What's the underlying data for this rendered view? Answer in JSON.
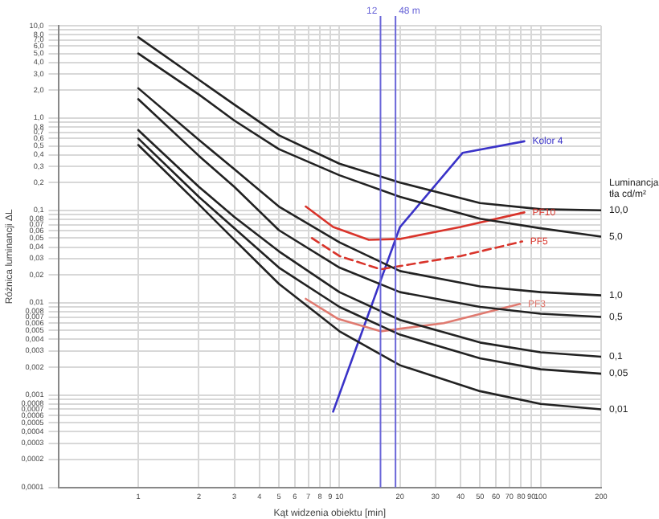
{
  "chart_data": {
    "type": "line",
    "log": "xy",
    "xlabel": "Kąt widzenia obiektu [min]",
    "ylabel": "Różnica luminancji ΔL",
    "legend_title": "Luminancja tła cd/m²",
    "xlim": [
      0.4,
      200
    ],
    "ylim": [
      0.0001,
      10
    ],
    "xticks": [
      1,
      2,
      3,
      4,
      5,
      6,
      7,
      8,
      9,
      10,
      20,
      30,
      40,
      50,
      60,
      70,
      80,
      90,
      100,
      200
    ],
    "yticks": [
      {
        "value": 0.0001,
        "label": "0,0001"
      },
      {
        "value": 0.0002,
        "label": "0,0002"
      },
      {
        "value": 0.0003,
        "label": "0,0003"
      },
      {
        "value": 0.0004,
        "label": "0,0004"
      },
      {
        "value": 0.0005,
        "label": "0,0005"
      },
      {
        "value": 0.0006,
        "label": "0,0006"
      },
      {
        "value": 0.0007,
        "label": "0,0007"
      },
      {
        "value": 0.0008,
        "label": "0,0008"
      },
      {
        "value": 0.0009,
        "label": null
      },
      {
        "value": 0.001,
        "label": "0,001"
      },
      {
        "value": 0.002,
        "label": "0,002"
      },
      {
        "value": 0.003,
        "label": "0,003"
      },
      {
        "value": 0.004,
        "label": "0,004"
      },
      {
        "value": 0.005,
        "label": "0,005"
      },
      {
        "value": 0.006,
        "label": "0,006"
      },
      {
        "value": 0.007,
        "label": "0,007"
      },
      {
        "value": 0.008,
        "label": "0,008"
      },
      {
        "value": 0.009,
        "label": null
      },
      {
        "value": 0.01,
        "label": "0,01"
      },
      {
        "value": 0.02,
        "label": "0,02"
      },
      {
        "value": 0.03,
        "label": "0,03"
      },
      {
        "value": 0.04,
        "label": "0,04"
      },
      {
        "value": 0.05,
        "label": "0,05"
      },
      {
        "value": 0.06,
        "label": "0,06"
      },
      {
        "value": 0.07,
        "label": "0,07"
      },
      {
        "value": 0.08,
        "label": "0,08"
      },
      {
        "value": 0.09,
        "label": null
      },
      {
        "value": 0.1,
        "label": "0,1"
      },
      {
        "value": 0.2,
        "label": "0,2"
      },
      {
        "value": 0.3,
        "label": "0,3"
      },
      {
        "value": 0.4,
        "label": "0,4"
      },
      {
        "value": 0.5,
        "label": "0,5"
      },
      {
        "value": 0.6,
        "label": "0,6"
      },
      {
        "value": 0.7,
        "label": "0,7"
      },
      {
        "value": 0.8,
        "label": "0,8"
      },
      {
        "value": 0.9,
        "label": null
      },
      {
        "value": 1,
        "label": "1,0"
      },
      {
        "value": 2,
        "label": "2,0"
      },
      {
        "value": 3,
        "label": "3,0"
      },
      {
        "value": 4,
        "label": "4,0"
      },
      {
        "value": 5,
        "label": "5,0"
      },
      {
        "value": 6,
        "label": "6,0"
      },
      {
        "value": 7,
        "label": "7,0"
      },
      {
        "value": 8,
        "label": "8,0"
      },
      {
        "value": 9,
        "label": null
      },
      {
        "value": 10,
        "label": "10,0"
      }
    ],
    "grid": true,
    "legend": false,
    "marker": "none",
    "line_style": "solid",
    "series": [
      {
        "name": "10,0",
        "color": "#222222",
        "x": [
          1,
          2,
          3,
          5,
          10,
          20,
          50,
          100,
          200
        ],
        "values": [
          7.5,
          2.6,
          1.4,
          0.65,
          0.32,
          0.2,
          0.12,
          0.103,
          0.1
        ]
      },
      {
        "name": "5,0",
        "color": "#222222",
        "x": [
          1,
          2,
          3,
          5,
          10,
          20,
          50,
          100,
          200
        ],
        "values": [
          5,
          1.8,
          0.94,
          0.46,
          0.24,
          0.14,
          0.081,
          0.064,
          0.052
        ]
      },
      {
        "name": "1,0",
        "color": "#222222",
        "x": [
          1,
          2,
          3,
          5,
          10,
          20,
          50,
          100,
          200
        ],
        "values": [
          2.1,
          0.58,
          0.28,
          0.11,
          0.045,
          0.022,
          0.015,
          0.013,
          0.012
        ]
      },
      {
        "name": "0,5",
        "color": "#222222",
        "x": [
          1,
          2,
          3,
          5,
          10,
          20,
          50,
          100,
          200
        ],
        "values": [
          1.6,
          0.39,
          0.18,
          0.061,
          0.024,
          0.013,
          0.009,
          0.0076,
          0.007
        ]
      },
      {
        "name": "0,1",
        "color": "#222222",
        "x": [
          1,
          2,
          3,
          5,
          10,
          20,
          50,
          100,
          200
        ],
        "values": [
          0.74,
          0.18,
          0.085,
          0.036,
          0.013,
          0.0065,
          0.0037,
          0.0029,
          0.0026
        ]
      },
      {
        "name": "0,05",
        "color": "#222222",
        "x": [
          1,
          2,
          3,
          5,
          10,
          20,
          50,
          100,
          200
        ],
        "values": [
          0.6,
          0.14,
          0.064,
          0.024,
          0.009,
          0.0045,
          0.0025,
          0.0019,
          0.0017
        ]
      },
      {
        "name": "0,01",
        "color": "#222222",
        "x": [
          1,
          2,
          3,
          5,
          10,
          20,
          50,
          100,
          200
        ],
        "values": [
          0.51,
          0.116,
          0.048,
          0.016,
          0.0049,
          0.0021,
          0.0011,
          0.0008,
          0.0007
        ]
      },
      {
        "name": "PF10",
        "color": "#d9342b",
        "x": [
          6.8,
          9.3,
          14,
          20,
          40,
          83
        ],
        "values": [
          0.11,
          0.066,
          0.048,
          0.049,
          0.066,
          0.095
        ]
      },
      {
        "name": "PF5",
        "color": "#d9342b",
        "line_style": "dashed",
        "x": [
          7.3,
          10,
          16,
          25,
          40,
          81
        ],
        "values": [
          0.05,
          0.032,
          0.023,
          0.027,
          0.032,
          0.046
        ]
      },
      {
        "name": "PF3",
        "color": "#e07a70",
        "x": [
          6.8,
          9.8,
          16,
          33,
          79
        ],
        "values": [
          0.011,
          0.0067,
          0.0049,
          0.006,
          0.0097
        ]
      },
      {
        "name": "Kolor 4",
        "color": "#3a33c8",
        "x": [
          9.3,
          20,
          41,
          83
        ],
        "values": [
          0.00066,
          0.066,
          0.42,
          0.56
        ]
      }
    ],
    "ref_lines": [
      {
        "axis": "x",
        "value": 16,
        "color": "#6a66d8"
      },
      {
        "axis": "x",
        "value": 19,
        "color": "#6a66d8"
      }
    ],
    "annotations": [
      "12",
      "48 m"
    ]
  }
}
